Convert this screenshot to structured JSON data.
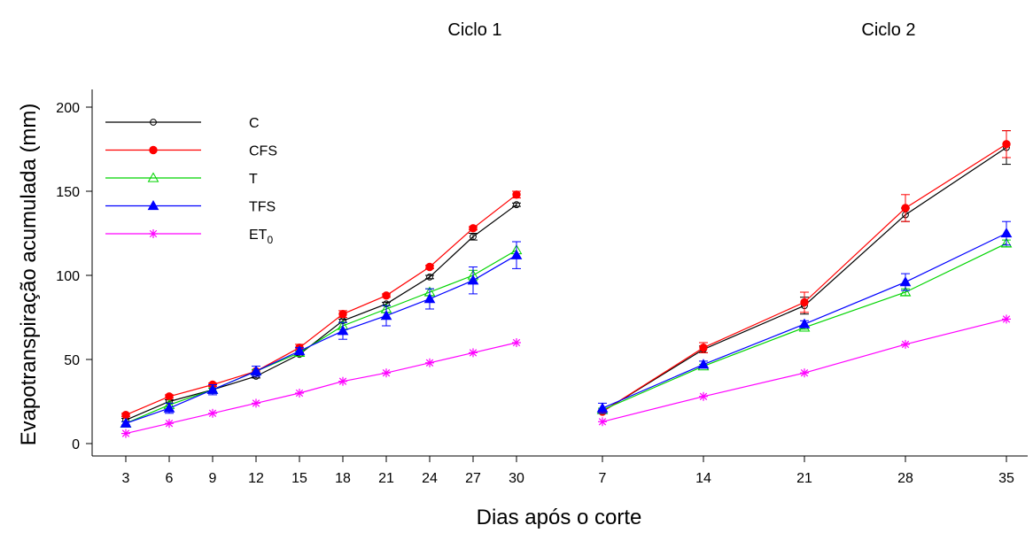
{
  "chart_data": {
    "type": "line",
    "ylabel": "Evapotranspiração acumulada (mm)",
    "xlabel": "Dias após o corte",
    "ylim": [
      0,
      200
    ],
    "yticks": [
      0,
      50,
      100,
      150,
      200
    ],
    "grid": false,
    "legend_position": "top-left",
    "panels": [
      {
        "title": "Ciclo 1",
        "x": [
          3,
          6,
          9,
          12,
          15,
          18,
          21,
          24,
          27,
          30
        ],
        "series": [
          {
            "name": "C",
            "color": "#000000",
            "marker": "open-circle",
            "values": [
              14,
              25,
              32,
              40,
              53,
              73,
              83,
              99,
              123,
              142
            ],
            "errors": [
              1,
              1,
              1,
              1,
              1,
              1,
              1,
              1,
              2,
              1
            ]
          },
          {
            "name": "CFS",
            "color": "#ff0000",
            "marker": "filled-circle",
            "values": [
              17,
              28,
              35,
              43,
              57,
              77,
              88,
              105,
              128,
              148
            ],
            "errors": [
              1,
              1,
              1,
              1,
              2,
              2,
              1,
              1,
              1,
              2
            ]
          },
          {
            "name": "T",
            "color": "#00d400",
            "marker": "open-triangle",
            "values": [
              12,
              23,
              32,
              43,
              54,
              70,
              80,
              90,
              100,
              115
            ],
            "errors": [
              1,
              1,
              1,
              1,
              1,
              2,
              2,
              2,
              3,
              5
            ]
          },
          {
            "name": "TFS",
            "color": "#0000ff",
            "marker": "filled-triangle",
            "values": [
              12,
              21,
              32,
              43,
              55,
              67,
              76,
              86,
              97,
              112
            ],
            "errors": [
              1,
              3,
              3,
              3,
              2,
              5,
              6,
              6,
              8,
              8
            ]
          },
          {
            "name": "ET",
            "name_subscript": "0",
            "color": "#ff00ff",
            "marker": "asterisk",
            "values": [
              6,
              12,
              18,
              24,
              30,
              37,
              42,
              48,
              54,
              60
            ],
            "errors": [
              0,
              0,
              0,
              0,
              0,
              0,
              0,
              0,
              0,
              0
            ]
          }
        ]
      },
      {
        "title": "Ciclo 2",
        "x": [
          7,
          14,
          21,
          28,
          35
        ],
        "series": [
          {
            "name": "C",
            "color": "#000000",
            "marker": "open-circle",
            "values": [
              19,
              56,
              82,
              136,
              176
            ],
            "errors": [
              1,
              2,
              5,
              4,
              10
            ]
          },
          {
            "name": "CFS",
            "color": "#ff0000",
            "marker": "filled-circle",
            "values": [
              19,
              57,
              84,
              140,
              178
            ],
            "errors": [
              1,
              3,
              6,
              8,
              8
            ]
          },
          {
            "name": "T",
            "color": "#00d400",
            "marker": "open-triangle",
            "values": [
              20,
              46,
              69,
              90,
              119
            ],
            "errors": [
              1,
              1,
              1,
              2,
              2
            ]
          },
          {
            "name": "TFS",
            "color": "#0000ff",
            "marker": "filled-triangle",
            "values": [
              21,
              47,
              71,
              96,
              125
            ],
            "errors": [
              3,
              2,
              2,
              5,
              7
            ]
          },
          {
            "name": "ET",
            "name_subscript": "0",
            "color": "#ff00ff",
            "marker": "asterisk",
            "values": [
              13,
              28,
              42,
              59,
              74
            ],
            "errors": [
              0,
              0,
              0,
              0,
              0
            ]
          }
        ]
      }
    ]
  }
}
